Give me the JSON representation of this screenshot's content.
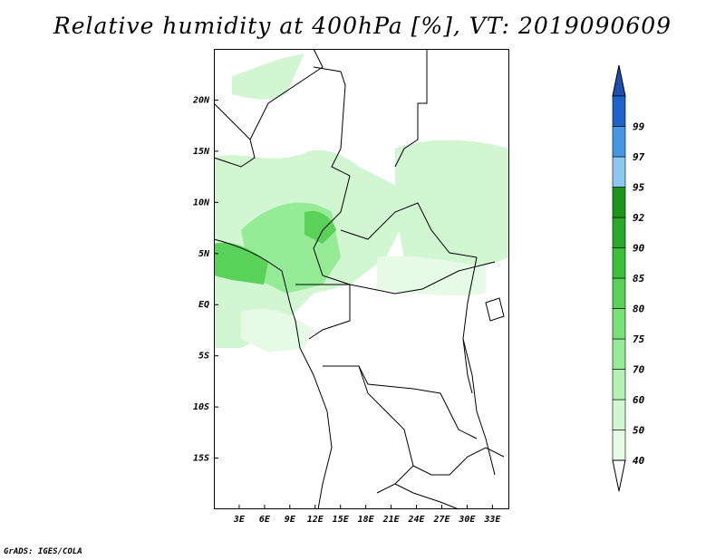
{
  "title": "Relative humidity at 400hPa [%], VT: 2019090609",
  "credit": "GrADS: IGES/COLA",
  "map": {
    "lat_labels": [
      {
        "label": "20N",
        "lat": 20
      },
      {
        "label": "15N",
        "lat": 15
      },
      {
        "label": "10N",
        "lat": 10
      },
      {
        "label": "5N",
        "lat": 5
      },
      {
        "label": "EQ",
        "lat": 0
      },
      {
        "label": "5S",
        "lat": -5
      },
      {
        "label": "10S",
        "lat": -10
      },
      {
        "label": "15S",
        "lat": -15
      }
    ],
    "lon_labels": [
      {
        "label": "3E",
        "lon": 3
      },
      {
        "label": "6E",
        "lon": 6
      },
      {
        "label": "9E",
        "lon": 9
      },
      {
        "label": "12E",
        "lon": 12
      },
      {
        "label": "15E",
        "lon": 15
      },
      {
        "label": "18E",
        "lon": 18
      },
      {
        "label": "21E",
        "lon": 21
      },
      {
        "label": "24E",
        "lon": 24
      },
      {
        "label": "27E",
        "lon": 27
      },
      {
        "label": "30E",
        "lon": 30
      },
      {
        "label": "33E",
        "lon": 33
      }
    ],
    "lon_range": [
      0,
      35
    ],
    "lat_range": [
      -20,
      25
    ]
  },
  "legend": {
    "levels": [
      "40",
      "50",
      "60",
      "70",
      "75",
      "80",
      "85",
      "90",
      "92",
      "95",
      "97",
      "99"
    ],
    "colors": [
      "#e6fae6",
      "#d2f5d2",
      "#b4f0b4",
      "#96eb96",
      "#78e178",
      "#5ad25a",
      "#3cc03c",
      "#28aa28",
      "#199619",
      "#8cc8f0",
      "#4696e6",
      "#1e64c8"
    ]
  },
  "colors": {
    "land_line": "#000000",
    "humidity_light": "#d2f5d2",
    "humidity_mid": "#96eb96",
    "humidity_dark": "#5ad25a"
  }
}
